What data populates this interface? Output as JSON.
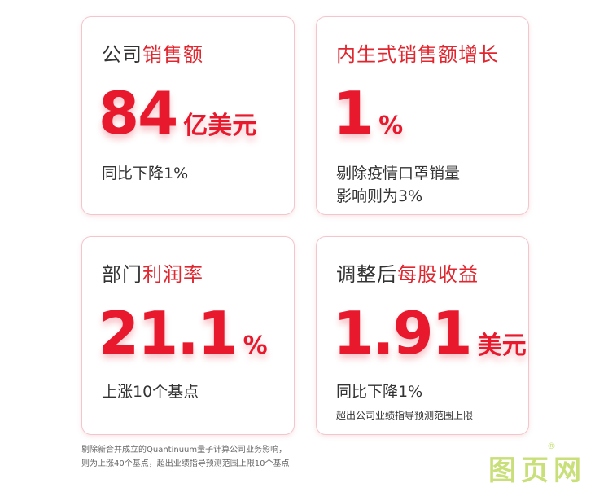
{
  "cards": [
    {
      "title_a": "公司",
      "title_b": "销售额",
      "value": "84",
      "unit": "亿美元",
      "sub": "同比下降1%"
    },
    {
      "title_a": "",
      "title_b": "内生式销售额增长",
      "value": "1",
      "unit": "%",
      "sub_1": "剔除疫情口罩销量",
      "sub_2": "影响则为3%"
    },
    {
      "title_a": "部门",
      "title_b": "利润率",
      "value": "21.1",
      "unit": "%",
      "sub": "上涨10个基点"
    },
    {
      "title_a": "调整后",
      "title_b": "每股收益",
      "value": "1.91",
      "unit": "美元",
      "sub": "同比下降1%",
      "note": "超出公司业绩指导预测范围上限"
    }
  ],
  "footnote": {
    "line1": "剔除新合并成立的Quantinuum量子计算公司业务影响，",
    "line2": "则为上涨40个基点，超出业绩指导预测范围上限10个基点"
  },
  "watermark": {
    "text": "图页网",
    "mark": "®"
  }
}
